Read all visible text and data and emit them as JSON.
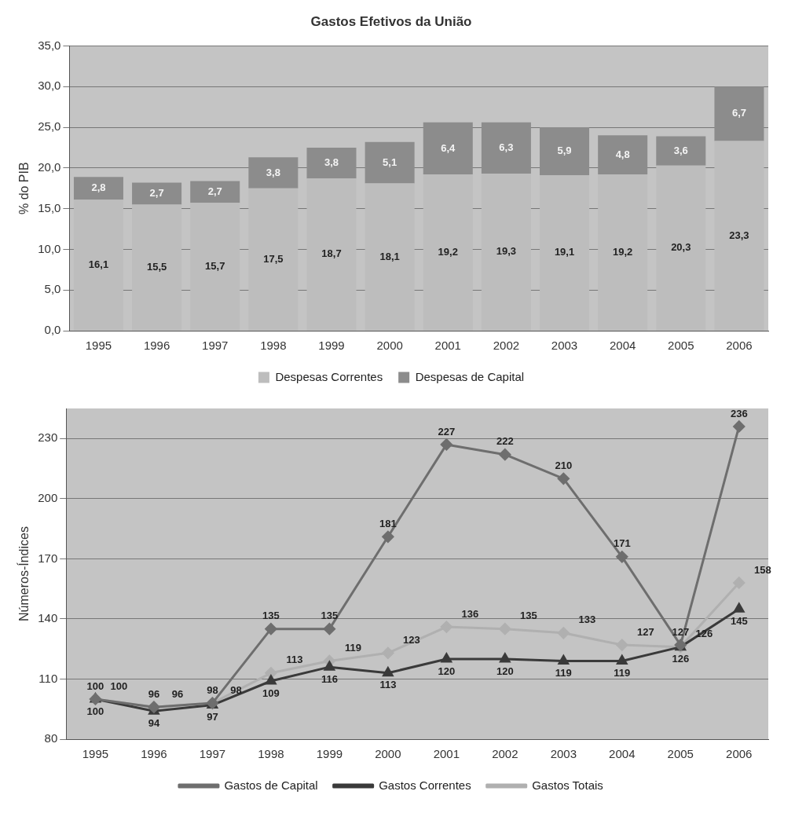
{
  "chart_data": [
    {
      "type": "bar",
      "title": "Gastos Efetivos da União",
      "ylabel": "% do PIB",
      "stacked": true,
      "categories": [
        "1995",
        "1996",
        "1997",
        "1998",
        "1999",
        "2000",
        "2001",
        "2002",
        "2003",
        "2004",
        "2005",
        "2006"
      ],
      "series": [
        {
          "name": "Despesas Correntes",
          "color": "#bdbdbd",
          "values": [
            16.1,
            15.5,
            15.7,
            17.5,
            18.7,
            18.1,
            19.2,
            19.3,
            19.1,
            19.2,
            20.3,
            23.3
          ],
          "value_labels": [
            "16,1",
            "15,5",
            "15,7",
            "17,5",
            "18,7",
            "18,1",
            "19,2",
            "19,3",
            "19,1",
            "19,2",
            "20,3",
            "23,3"
          ]
        },
        {
          "name": "Despesas de Capital",
          "color": "#8c8c8c",
          "values": [
            2.8,
            2.7,
            2.7,
            3.8,
            3.8,
            5.1,
            6.4,
            6.3,
            5.9,
            4.8,
            3.6,
            6.7
          ],
          "value_labels": [
            "2,8",
            "2,7",
            "2,7",
            "3,8",
            "3,8",
            "5,1",
            "6,4",
            "6,3",
            "5,9",
            "4,8",
            "3,6",
            "6,7"
          ]
        }
      ],
      "ylim": [
        0,
        35
      ],
      "yticks": [
        {
          "value": 0,
          "label": "0,0"
        },
        {
          "value": 5,
          "label": "5,0"
        },
        {
          "value": 10,
          "label": "10,0"
        },
        {
          "value": 15,
          "label": "15,0"
        },
        {
          "value": 20,
          "label": "20,0"
        },
        {
          "value": 25,
          "label": "25,0"
        },
        {
          "value": 30,
          "label": "30,0"
        },
        {
          "value": 35,
          "label": "35,0"
        }
      ],
      "grid": "y",
      "legend": "bottom"
    },
    {
      "type": "line",
      "ylabel": "Números-Índices",
      "categories": [
        "1995",
        "1996",
        "1997",
        "1998",
        "1999",
        "2000",
        "2001",
        "2002",
        "2003",
        "2004",
        "2005",
        "2006"
      ],
      "series": [
        {
          "name": "Gastos de Capital",
          "color": "#6e6e6e",
          "marker": "diamond",
          "values": [
            100,
            96,
            98,
            135,
            135,
            181,
            227,
            222,
            210,
            171,
            127,
            236
          ]
        },
        {
          "name": "Gastos Correntes",
          "color": "#3a3a3a",
          "marker": "triangle",
          "values": [
            100,
            94,
            97,
            109,
            116,
            113,
            120,
            120,
            119,
            119,
            126,
            145
          ]
        },
        {
          "name": "Gastos Totais",
          "color": "#b0b0b0",
          "marker": "diamond",
          "values": [
            100,
            96,
            98,
            113,
            119,
            123,
            136,
            135,
            133,
            127,
            126,
            158
          ]
        }
      ],
      "ylim": [
        80,
        245
      ],
      "yticks": [
        80,
        110,
        140,
        170,
        200,
        230
      ],
      "grid": "y",
      "legend": "bottom",
      "data_labels": true
    }
  ]
}
